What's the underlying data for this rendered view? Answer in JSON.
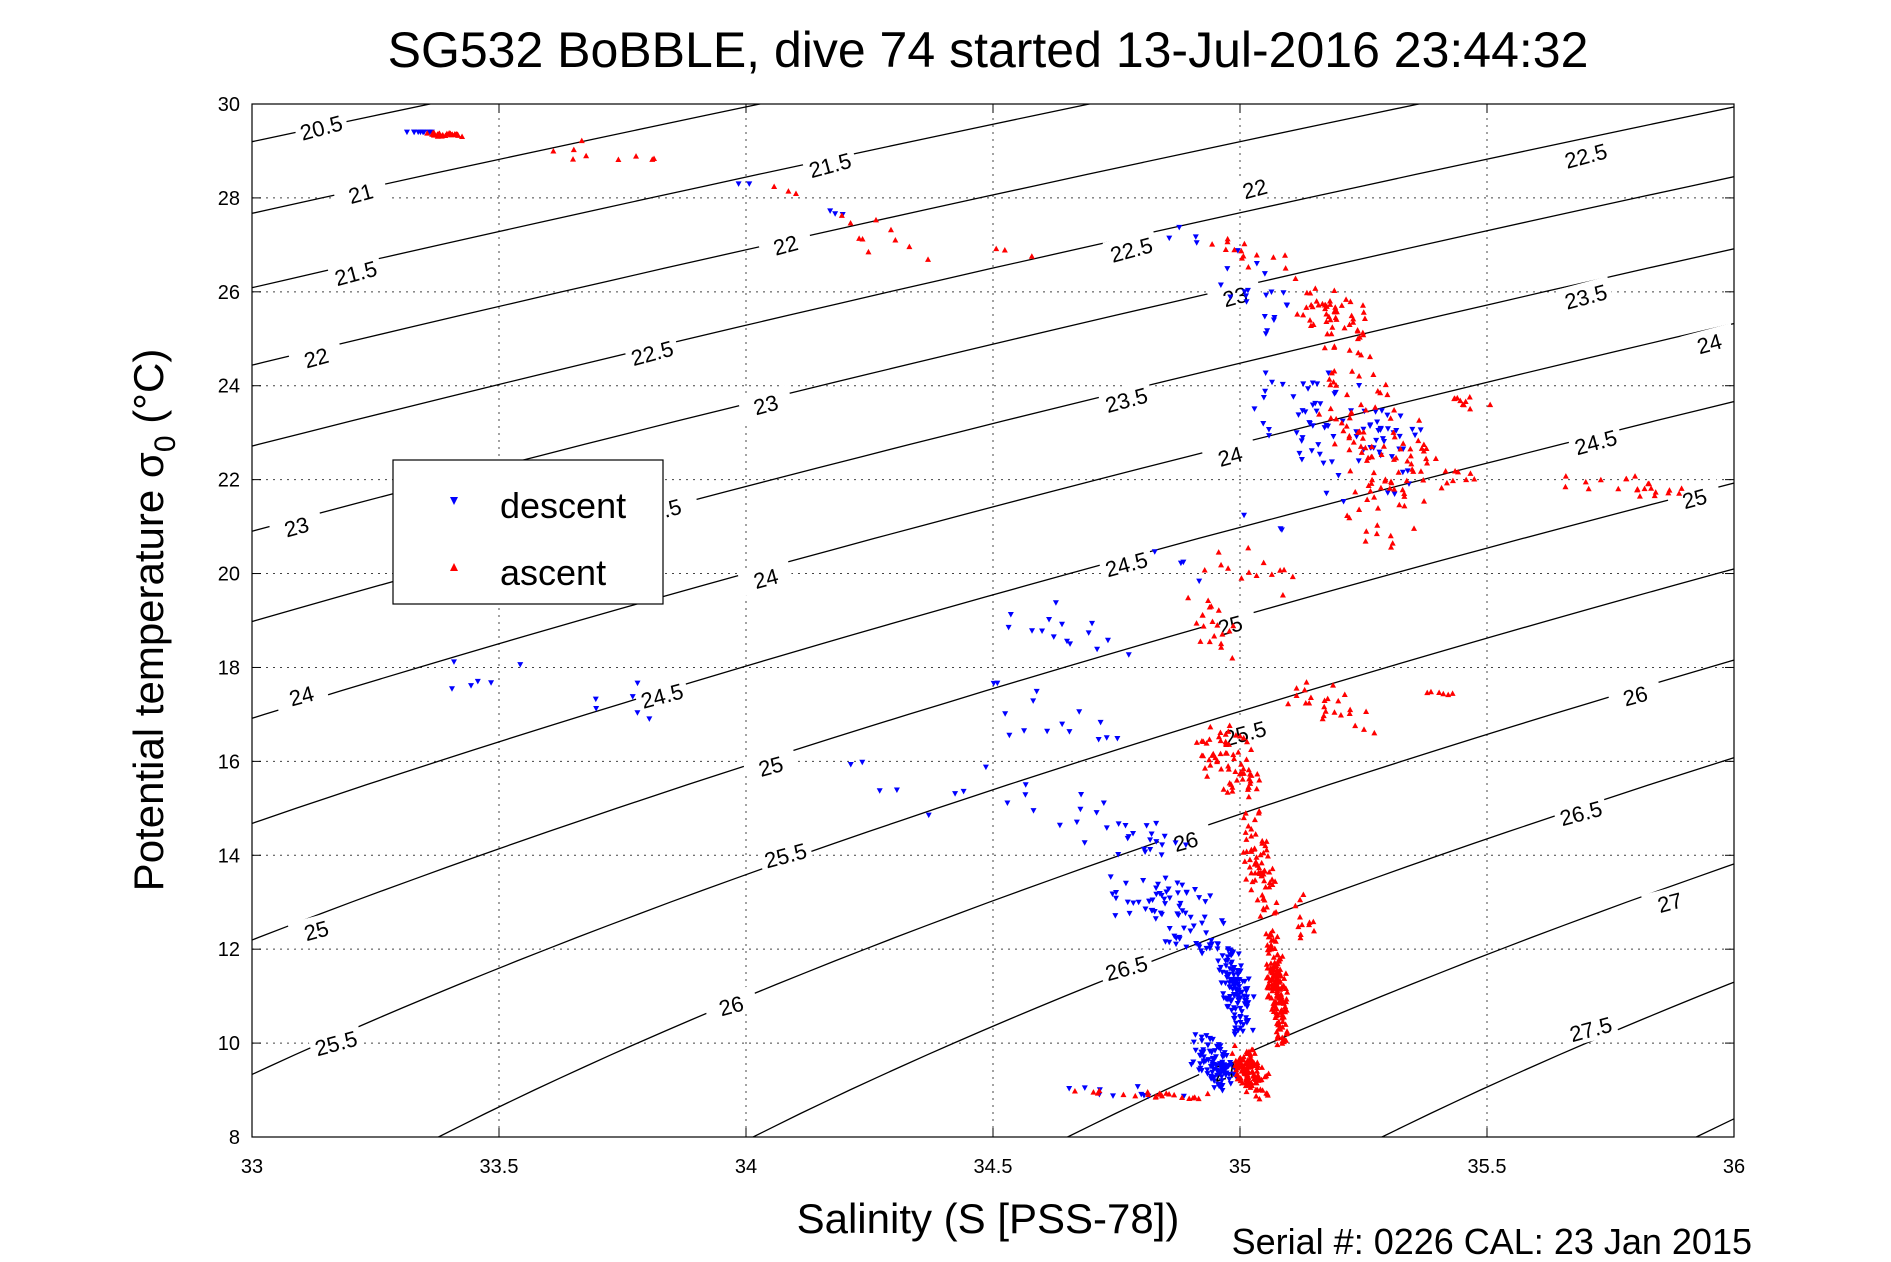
{
  "chart_data": {
    "type": "scatter",
    "title": "SG532 BoBBLE, dive 74 started 13-Jul-2016 23:44:32",
    "xlabel": "Salinity (S [PSS-78])",
    "ylabel": "Potential temperature σ",
    "ylabel_sub": "0",
    "ylabel_unit": " (°C)",
    "footnote": "Serial #: 0226  CAL: 23 Jan 2015",
    "xlim": [
      33,
      36
    ],
    "ylim": [
      8,
      30
    ],
    "xticks": [
      33,
      33.5,
      34,
      34.5,
      35,
      35.5,
      36
    ],
    "xtick_labels": [
      "33",
      "33.5",
      "34",
      "34.5",
      "35",
      "35.5",
      "36"
    ],
    "yticks": [
      8,
      10,
      12,
      14,
      16,
      18,
      20,
      22,
      24,
      26,
      28,
      30
    ],
    "ytick_labels": [
      "8",
      "10",
      "12",
      "14",
      "16",
      "18",
      "20",
      "22",
      "24",
      "26",
      "28",
      "30"
    ],
    "grid": true,
    "legend_position": "left-center",
    "legend": [
      "descent",
      "ascent"
    ],
    "colors": {
      "descent": "#0000ff",
      "ascent": "#ff0000",
      "contour": "#000000"
    },
    "contour_levels": [
      20.5,
      21,
      21.5,
      22,
      22.5,
      23,
      23.5,
      24,
      24.5,
      25,
      25.5,
      26,
      26.5,
      27,
      27.5
    ],
    "contour_labels": [
      {
        "text": "20.5",
        "s": 33.14,
        "t": 29.5
      },
      {
        "text": "21",
        "s": 33.22,
        "t": 28.1
      },
      {
        "text": "21.5",
        "s": 33.21,
        "t": 26.4
      },
      {
        "text": "22",
        "s": 33.13,
        "t": 24.6
      },
      {
        "text": "23",
        "s": 33.09,
        "t": 21.0
      },
      {
        "text": "24",
        "s": 33.1,
        "t": 17.4
      },
      {
        "text": "25",
        "s": 33.13,
        "t": 12.4
      },
      {
        "text": "25.5",
        "s": 33.17,
        "t": 10.0
      },
      {
        "text": "21.5",
        "s": 34.17,
        "t": 28.7
      },
      {
        "text": "22",
        "s": 34.08,
        "t": 27.0
      },
      {
        "text": "22.5",
        "s": 33.81,
        "t": 24.7
      },
      {
        "text": "23",
        "s": 34.04,
        "t": 23.6
      },
      {
        "text": ".5",
        "s": 33.85,
        "t": 21.4
      },
      {
        "text": "24",
        "s": 34.04,
        "t": 19.9
      },
      {
        "text": "24.5",
        "s": 33.83,
        "t": 17.4
      },
      {
        "text": "25",
        "s": 34.05,
        "t": 15.9
      },
      {
        "text": "25.5",
        "s": 34.08,
        "t": 14.0
      },
      {
        "text": "26",
        "s": 33.97,
        "t": 10.8
      },
      {
        "text": "22",
        "s": 35.03,
        "t": 28.2
      },
      {
        "text": "22.5",
        "s": 34.78,
        "t": 26.9
      },
      {
        "text": "23",
        "s": 34.99,
        "t": 25.9
      },
      {
        "text": "23.5",
        "s": 34.77,
        "t": 23.7
      },
      {
        "text": "24",
        "s": 34.98,
        "t": 22.5
      },
      {
        "text": "24.5",
        "s": 34.77,
        "t": 20.2
      },
      {
        "text": "25",
        "s": 34.98,
        "t": 18.9
      },
      {
        "text": "25.5",
        "s": 35.01,
        "t": 16.6
      },
      {
        "text": "26",
        "s": 34.89,
        "t": 14.3
      },
      {
        "text": "26.5",
        "s": 34.77,
        "t": 11.6
      },
      {
        "text": "27",
        "s": 34.97,
        "t": 9.4
      },
      {
        "text": "22.5",
        "s": 35.7,
        "t": 28.9
      },
      {
        "text": "23.5",
        "s": 35.7,
        "t": 25.9
      },
      {
        "text": "24",
        "s": 35.95,
        "t": 24.9
      },
      {
        "text": "24.5",
        "s": 35.72,
        "t": 22.8
      },
      {
        "text": "25",
        "s": 35.92,
        "t": 21.6
      },
      {
        "text": "26",
        "s": 35.8,
        "t": 17.4
      },
      {
        "text": "26.5",
        "s": 35.69,
        "t": 14.9
      },
      {
        "text": "27",
        "s": 35.87,
        "t": 13.0
      },
      {
        "text": "27.5",
        "s": 35.71,
        "t": 10.3
      }
    ],
    "series": [
      {
        "name": "descent",
        "marker": "triangle-down",
        "clusters": [
          {
            "s": [
              33.3,
              33.38,
              33.5
            ],
            "t": [
              29.4,
              29.4,
              29.2
            ],
            "n": 10
          },
          {
            "s": [
              33.98,
              34.02
            ],
            "t": [
              28.3,
              28.3
            ],
            "n": 2
          },
          {
            "s": [
              34.15,
              34.22
            ],
            "t": [
              27.8,
              27.6
            ],
            "n": 3
          },
          {
            "s": [
              34.83,
              34.95
            ],
            "t": [
              27.4,
              26.9
            ],
            "n": 4
          },
          {
            "s": [
              34.95,
              35.12
            ],
            "t": [
              26.9,
              24.8
            ],
            "n": 20
          },
          {
            "s": [
              35.0,
              35.4
            ],
            "t": [
              24.8,
              21.5
            ],
            "n": 75
          },
          {
            "s": [
              35.22,
              35.38
            ],
            "t": [
              23.3,
              22.8
            ],
            "n": 12
          },
          {
            "s": [
              35.0,
              35.12
            ],
            "t": [
              21.3,
              20.7
            ],
            "n": 3
          },
          {
            "s": [
              34.82,
              35.0
            ],
            "t": [
              20.6,
              19.6
            ],
            "n": 4
          },
          {
            "s": [
              34.5,
              34.78
            ],
            "t": [
              19.5,
              18.2
            ],
            "n": 15
          },
          {
            "s": [
              34.42,
              34.8
            ],
            "t": [
              17.8,
              15.8
            ],
            "n": 15
          },
          {
            "s": [
              33.28,
              33.95
            ],
            "t": [
              18.2,
              16.7
            ],
            "n": 12
          },
          {
            "s": [
              34.1,
              34.8
            ],
            "t": [
              16.2,
              14.5
            ],
            "n": 14
          },
          {
            "s": [
              34.6,
              34.95
            ],
            "t": [
              15.2,
              13.8
            ],
            "n": 25
          },
          {
            "s": [
              34.72,
              35.0
            ],
            "t": [
              13.8,
              12.0
            ],
            "n": 60
          },
          {
            "s": [
              34.82,
              35.0
            ],
            "t": [
              12.4,
              11.8
            ],
            "n": 18
          },
          {
            "s": [
              34.95,
              35.03
            ],
            "t": [
              12.2,
              10.0
            ],
            "n": 120
          },
          {
            "s": [
              34.9,
              35.0
            ],
            "t": [
              10.2,
              8.9
            ],
            "n": 110
          },
          {
            "s": [
              34.65,
              34.9
            ],
            "t": [
              9.1,
              8.8
            ],
            "n": 10
          }
        ]
      },
      {
        "name": "ascent",
        "marker": "triangle-up",
        "clusters": [
          {
            "s": [
              33.34,
              33.44
            ],
            "t": [
              29.4,
              29.3
            ],
            "n": 28
          },
          {
            "s": [
              33.45,
              33.9
            ],
            "t": [
              29.3,
              28.5
            ],
            "n": 9
          },
          {
            "s": [
              34.0,
              34.15
            ],
            "t": [
              28.3,
              27.9
            ],
            "n": 3
          },
          {
            "s": [
              34.18,
              34.38
            ],
            "t": [
              27.9,
              26.6
            ],
            "n": 10
          },
          {
            "s": [
              34.45,
              34.6
            ],
            "t": [
              27.0,
              26.7
            ],
            "n": 3
          },
          {
            "s": [
              34.93,
              35.1
            ],
            "t": [
              27.3,
              26.3
            ],
            "n": 14
          },
          {
            "s": [
              35.1,
              35.28
            ],
            "t": [
              26.4,
              24.5
            ],
            "n": 60
          },
          {
            "s": [
              35.15,
              35.4
            ],
            "t": [
              24.6,
              21.0
            ],
            "n": 90
          },
          {
            "s": [
              35.4,
              35.52
            ],
            "t": [
              23.8,
              23.5
            ],
            "n": 10
          },
          {
            "s": [
              35.33,
              35.5
            ],
            "t": [
              22.8,
              21.7
            ],
            "n": 14
          },
          {
            "s": [
              35.6,
              35.95
            ],
            "t": [
              22.1,
              21.6
            ],
            "n": 22
          },
          {
            "s": [
              35.18,
              35.38
            ],
            "t": [
              21.6,
              20.4
            ],
            "n": 12
          },
          {
            "s": [
              34.9,
              35.12
            ],
            "t": [
              20.8,
              19.5
            ],
            "n": 14
          },
          {
            "s": [
              34.88,
              35.0
            ],
            "t": [
              19.6,
              18.0
            ],
            "n": 20
          },
          {
            "s": [
              35.05,
              35.28
            ],
            "t": [
              17.8,
              16.5
            ],
            "n": 25
          },
          {
            "s": [
              35.35,
              35.45
            ],
            "t": [
              17.5,
              17.4
            ],
            "n": 6
          },
          {
            "s": [
              34.9,
              35.05
            ],
            "t": [
              17.0,
              15.0
            ],
            "n": 70
          },
          {
            "s": [
              35.0,
              35.08
            ],
            "t": [
              15.0,
              12.5
            ],
            "n": 70
          },
          {
            "s": [
              35.1,
              35.16
            ],
            "t": [
              13.2,
              11.8
            ],
            "n": 12
          },
          {
            "s": [
              35.05,
              35.1
            ],
            "t": [
              12.6,
              9.8
            ],
            "n": 170
          },
          {
            "s": [
              34.98,
              35.06
            ],
            "t": [
              10.0,
              8.8
            ],
            "n": 120
          },
          {
            "s": [
              34.66,
              34.98
            ],
            "t": [
              9.0,
              8.8
            ],
            "n": 22
          }
        ]
      }
    ]
  }
}
